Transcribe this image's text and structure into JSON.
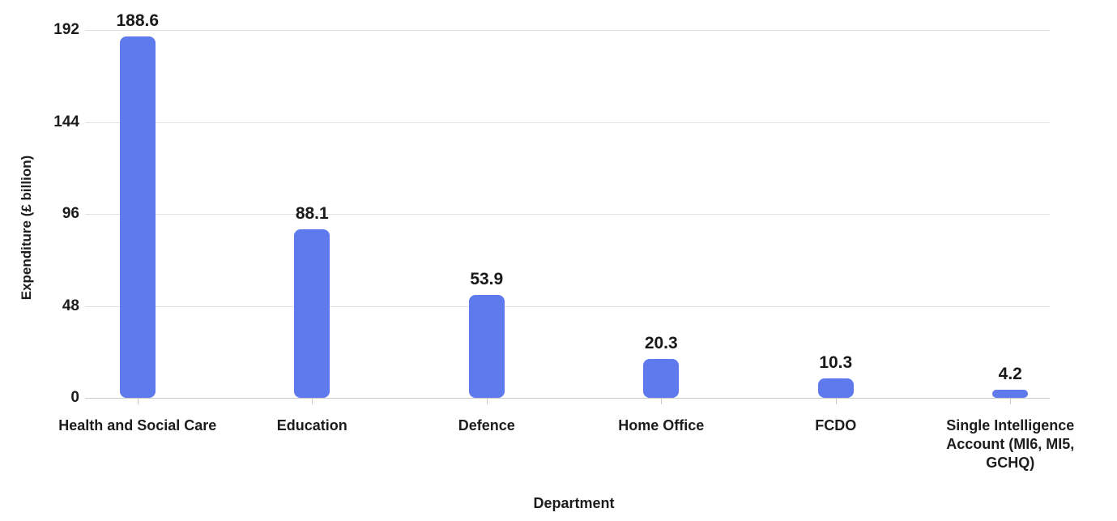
{
  "chart_data": {
    "type": "bar",
    "categories": [
      "Health and Social Care",
      "Education",
      "Defence",
      "Home Office",
      "FCDO",
      "Single Intelligence Account (MI6, MI5, GCHQ)"
    ],
    "values": [
      188.6,
      88.1,
      53.9,
      20.3,
      10.3,
      4.2
    ],
    "value_labels": [
      "188.6",
      "88.1",
      "53.9",
      "20.3",
      "10.3",
      "4.2"
    ],
    "title": "",
    "xlabel": "Department",
    "ylabel": "Expenditure (£ billion)",
    "ylim": [
      0,
      192
    ],
    "yticks": [
      0,
      48,
      96,
      144,
      192
    ],
    "ytick_labels": [
      "0",
      "48",
      "96",
      "144",
      "192"
    ],
    "grid": "horizontal-only",
    "legend": "none",
    "bar_color": "#5e7aec",
    "gridline_color": "#e2e2e2",
    "axis_line_color": "#c9c9c9",
    "label_color": "#1c1c1c"
  }
}
